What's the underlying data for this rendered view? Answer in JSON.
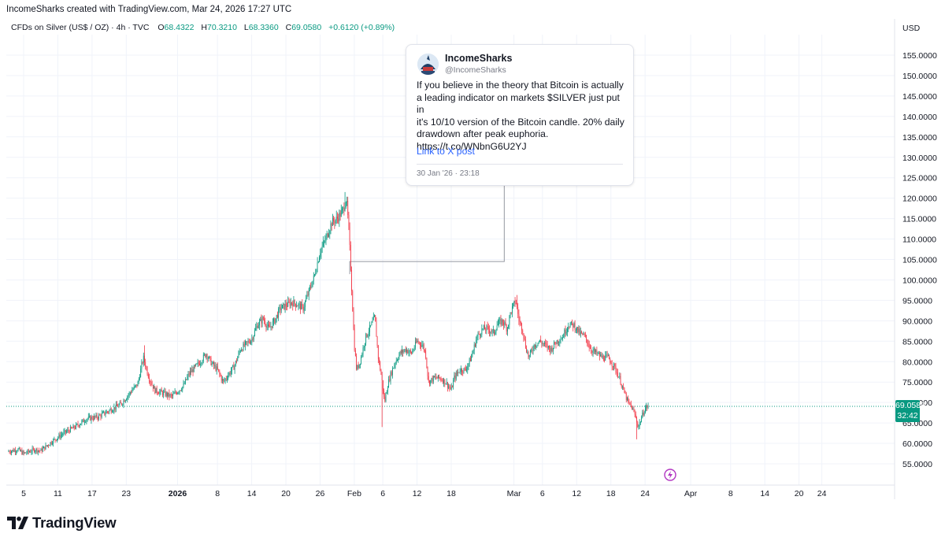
{
  "header": {
    "text": "IncomeSharks created with TradingView.com, Mar 24, 2026 17:27 UTC"
  },
  "legend": {
    "title": "CFDs on Silver (US$ / OZ) · 4h · TVC",
    "open_label": "O",
    "open": "68.4322",
    "high_label": "H",
    "high": "70.3210",
    "low_label": "L",
    "low": "68.3360",
    "close_label": "C",
    "close": "69.0580",
    "change": "+0.6120 (+0.89%)"
  },
  "axis": {
    "currency": "USD"
  },
  "last_price": {
    "price": "69.0580",
    "countdown": "32:42"
  },
  "tweet": {
    "name": "IncomeSharks",
    "handle": "@IncomeSharks",
    "text": "If you believe in the theory that Bitcoin is actually\na leading indicator on markets $SILVER just put in\nit's 10/10 version of the Bitcoin candle. 20% daily\ndrawdown after peak euphoria.\nhttps://t.co/WNbnG6U2YJ",
    "link": "Link to X post",
    "date": "30 Jan '26 · 23:18"
  },
  "logo": {
    "text": "TradingView"
  },
  "icons": {
    "logo": "tradingview-logo-icon",
    "avatar": "shark-avatar-icon",
    "flash": "lightning-icon"
  },
  "colors": {
    "up": "#089981",
    "down": "#f23645",
    "grid": "#f0f3fa",
    "text": "#131722",
    "link": "#2962ff"
  },
  "chart_data": {
    "type": "candlestick",
    "title": "CFDs on Silver (US$ / OZ) · 4h · TVC",
    "xlabel": "",
    "ylabel": "USD",
    "ylim": [
      52,
      160
    ],
    "grid": true,
    "x_ticks": [
      {
        "label": "5",
        "day": 0,
        "bold": false
      },
      {
        "label": "11",
        "day": 6,
        "bold": false
      },
      {
        "label": "17",
        "day": 12,
        "bold": false
      },
      {
        "label": "23",
        "day": 18,
        "bold": false
      },
      {
        "label": "2026",
        "day": 27,
        "bold": true
      },
      {
        "label": "8",
        "day": 34,
        "bold": false
      },
      {
        "label": "14",
        "day": 40,
        "bold": false
      },
      {
        "label": "20",
        "day": 46,
        "bold": false
      },
      {
        "label": "26",
        "day": 52,
        "bold": false
      },
      {
        "label": "Feb",
        "day": 58,
        "bold": false
      },
      {
        "label": "6",
        "day": 63,
        "bold": false
      },
      {
        "label": "12",
        "day": 69,
        "bold": false
      },
      {
        "label": "18",
        "day": 75,
        "bold": false
      },
      {
        "label": "Mar",
        "day": 86,
        "bold": false
      },
      {
        "label": "6",
        "day": 91,
        "bold": false
      },
      {
        "label": "12",
        "day": 97,
        "bold": false
      },
      {
        "label": "18",
        "day": 103,
        "bold": false
      },
      {
        "label": "24",
        "day": 109,
        "bold": false
      },
      {
        "label": "Apr",
        "day": 117,
        "bold": false
      },
      {
        "label": "8",
        "day": 124,
        "bold": false
      },
      {
        "label": "14",
        "day": 130,
        "bold": false
      },
      {
        "label": "20",
        "day": 136,
        "bold": false
      },
      {
        "label": "24",
        "day": 140,
        "bold": false
      }
    ],
    "y_ticks": [
      "155.0000",
      "150.0000",
      "145.0000",
      "140.0000",
      "135.0000",
      "130.0000",
      "125.0000",
      "120.0000",
      "115.0000",
      "110.0000",
      "105.0000",
      "100.0000",
      "95.0000",
      "90.0000",
      "85.0000",
      "80.0000",
      "75.0000",
      "70.0000",
      "65.0000",
      "60.0000",
      "55.0000"
    ],
    "y_tick_values": [
      155,
      150,
      145,
      140,
      135,
      130,
      125,
      120,
      115,
      110,
      105,
      100,
      95,
      90,
      85,
      80,
      75,
      70,
      65,
      60,
      55
    ],
    "last_close": 69.058,
    "callout": {
      "from_day": 57.2,
      "from_price": 104.5,
      "corner_day": 84.3,
      "corner_price": 104.5,
      "to_price": 125.5
    },
    "candles_per_day": 6,
    "days_start": -2.8,
    "anchors": [
      [
        -2.8,
        58.0
      ],
      [
        -1,
        58.5
      ],
      [
        0,
        57.5
      ],
      [
        2,
        58.5
      ],
      [
        3,
        58.2
      ],
      [
        5,
        60.5
      ],
      [
        7,
        62.5
      ],
      [
        9,
        64.0
      ],
      [
        11,
        66.0
      ],
      [
        13,
        66.5
      ],
      [
        15,
        68.0
      ],
      [
        17,
        69.5
      ],
      [
        19,
        73.0
      ],
      [
        20,
        74.5
      ],
      [
        21,
        81.0
      ],
      [
        22,
        76.0
      ],
      [
        23,
        73.0
      ],
      [
        25,
        72.0
      ],
      [
        26,
        71.5
      ],
      [
        28,
        74.0
      ],
      [
        29,
        77.0
      ],
      [
        31,
        80.0
      ],
      [
        32,
        82.0
      ],
      [
        33,
        79.5
      ],
      [
        34,
        78.0
      ],
      [
        35,
        75.0
      ],
      [
        37,
        79.0
      ],
      [
        38,
        83.0
      ],
      [
        40,
        85.5
      ],
      [
        41,
        89.0
      ],
      [
        42,
        90.5
      ],
      [
        43,
        88.0
      ],
      [
        44,
        90.0
      ],
      [
        45,
        93.0
      ],
      [
        47,
        94.5
      ],
      [
        48,
        94.0
      ],
      [
        49,
        93.0
      ],
      [
        50,
        97.0
      ],
      [
        51,
        101.0
      ],
      [
        52,
        107.0
      ],
      [
        53,
        110.0
      ],
      [
        54,
        114.0
      ],
      [
        55,
        115.0
      ],
      [
        56,
        117.0
      ],
      [
        56.6,
        120.0
      ],
      [
        57.0,
        113.0
      ],
      [
        57.3,
        105.0
      ],
      [
        57.6,
        96.0
      ],
      [
        58.0,
        84.0
      ],
      [
        58.4,
        78.0
      ],
      [
        59.0,
        80.0
      ],
      [
        60.0,
        86.0
      ],
      [
        61.0,
        89.0
      ],
      [
        61.6,
        91.0
      ],
      [
        62.2,
        81.0
      ],
      [
        62.8,
        76.0
      ],
      [
        63.3,
        70.0
      ],
      [
        63.8,
        74.0
      ],
      [
        64.4,
        77.0
      ],
      [
        65.2,
        80.0
      ],
      [
        66.0,
        82.0
      ],
      [
        67.0,
        83.0
      ],
      [
        68.0,
        82.0
      ],
      [
        69.0,
        85.0
      ],
      [
        70.0,
        84.0
      ],
      [
        70.5,
        82.0
      ],
      [
        71.0,
        75.0
      ],
      [
        72.0,
        76.0
      ],
      [
        73.0,
        76.0
      ],
      [
        74.0,
        75.0
      ],
      [
        75.0,
        73.0
      ],
      [
        75.5,
        76.0
      ],
      [
        76.5,
        78.0
      ],
      [
        77.5,
        78.0
      ],
      [
        78.5,
        81.0
      ],
      [
        79.5,
        86.0
      ],
      [
        80.5,
        88.0
      ],
      [
        81.5,
        88.0
      ],
      [
        82.5,
        87.0
      ],
      [
        83.0,
        89.0
      ],
      [
        84.0,
        90.0
      ],
      [
        84.8,
        88.0
      ],
      [
        85.4,
        92.0
      ],
      [
        86.3,
        95.0
      ],
      [
        86.9,
        90.0
      ],
      [
        87.5,
        88.0
      ],
      [
        88.0,
        84.0
      ],
      [
        88.6,
        81.0
      ],
      [
        89.5,
        84.0
      ],
      [
        90.5,
        85.0
      ],
      [
        91.5,
        84.0
      ],
      [
        92.5,
        83.0
      ],
      [
        93.5,
        85.0
      ],
      [
        94.5,
        86.0
      ],
      [
        95.5,
        89.0
      ],
      [
        96.5,
        89.0
      ],
      [
        97.5,
        87.0
      ],
      [
        98.5,
        86.0
      ],
      [
        99.5,
        83.0
      ],
      [
        100.5,
        82.0
      ],
      [
        101.5,
        81.0
      ],
      [
        102.5,
        81.0
      ],
      [
        103.5,
        79.0
      ],
      [
        104.5,
        76.0
      ],
      [
        105.2,
        73.0
      ],
      [
        106.0,
        70.0
      ],
      [
        106.6,
        69.0
      ],
      [
        107.2,
        67.0
      ],
      [
        107.8,
        64.0
      ],
      [
        108.3,
        66.0
      ],
      [
        108.8,
        68.0
      ],
      [
        109.3,
        69.0
      ],
      [
        109.6,
        69.06
      ]
    ],
    "wick_events": [
      {
        "day": 21.2,
        "high": 84.0
      },
      {
        "day": 56.3,
        "high": 121.5
      },
      {
        "day": 62.8,
        "low": 64.0
      },
      {
        "day": 86.5,
        "high": 96.3
      },
      {
        "day": 107.6,
        "low": 61.0
      }
    ]
  }
}
